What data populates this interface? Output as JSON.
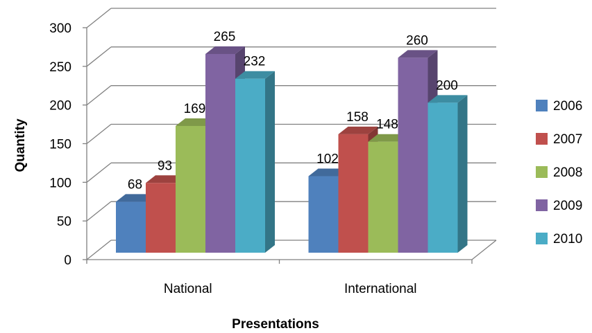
{
  "chart_data": {
    "type": "bar",
    "categories": [
      "National",
      "International"
    ],
    "series": [
      {
        "name": "2006",
        "values": [
          68,
          102
        ],
        "color": "#4F81BD"
      },
      {
        "name": "2007",
        "values": [
          93,
          158
        ],
        "color": "#C0504D"
      },
      {
        "name": "2008",
        "values": [
          169,
          148
        ],
        "color": "#9BBB59"
      },
      {
        "name": "2009",
        "values": [
          265,
          260
        ],
        "color": "#8064A2"
      },
      {
        "name": "2010",
        "values": [
          232,
          200
        ],
        "color": "#4BACC6"
      }
    ],
    "xlabel": "Presentations",
    "ylabel": "Quantity",
    "ylim": [
      0,
      300
    ],
    "yticks": [
      "0",
      "50",
      "100",
      "150",
      "200",
      "250",
      "300"
    ],
    "grid": true,
    "legend": "right",
    "style": "3d-clustered-column"
  }
}
